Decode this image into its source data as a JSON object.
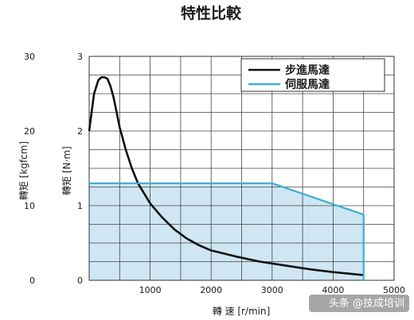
{
  "chart_data": {
    "type": "line",
    "title": "特性比較",
    "xlabel": "轉 速 [r/min]",
    "xlim": [
      0,
      5000
    ],
    "x_ticks": [
      1000,
      2000,
      3000,
      4000,
      5000
    ],
    "ylabel_left_outer": "轉矩 [kgfcm]",
    "ylabel_left_inner": "轉矩 [N·m]",
    "ylim_outer": [
      0,
      30
    ],
    "ylim_inner": [
      0,
      3
    ],
    "y_ticks_outer": [
      0,
      10,
      20,
      30
    ],
    "y_ticks_inner": [
      0,
      1,
      2,
      3
    ],
    "grid": true,
    "legend_position": "top-right",
    "series": [
      {
        "name": "步進馬達",
        "color": "#111111",
        "x": [
          0,
          80,
          150,
          200,
          250,
          300,
          350,
          400,
          500,
          600,
          700,
          800,
          1000,
          1200,
          1400,
          1600,
          1800,
          2000,
          2400,
          2800,
          3200,
          3600,
          4000,
          4500
        ],
        "y": [
          2.0,
          2.5,
          2.68,
          2.72,
          2.72,
          2.7,
          2.6,
          2.45,
          2.05,
          1.75,
          1.5,
          1.3,
          1.03,
          0.84,
          0.68,
          0.56,
          0.47,
          0.4,
          0.32,
          0.25,
          0.2,
          0.15,
          0.11,
          0.07
        ]
      },
      {
        "name": "伺服馬達",
        "color": "#3aaed0",
        "fill": "#cfe6f3",
        "x": [
          0,
          3000,
          4500,
          4500
        ],
        "y": [
          1.3,
          1.3,
          0.88,
          0
        ]
      }
    ]
  },
  "watermark": "头条 @技成培训"
}
